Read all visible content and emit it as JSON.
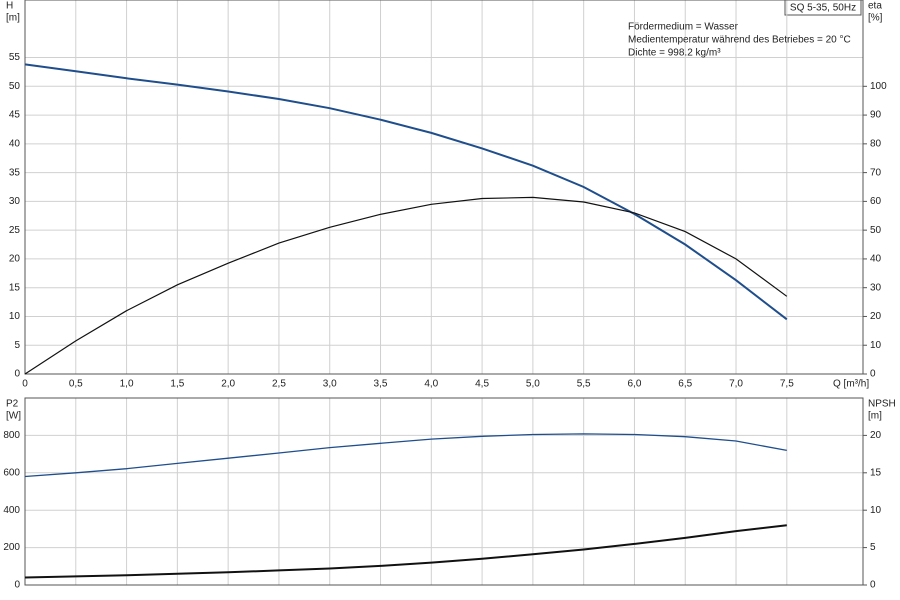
{
  "chart_data": [
    {
      "type": "line",
      "title": "SQ 5-35, 50Hz",
      "notes": [
        "Fördermedium = Wasser",
        "Medientemperatur während des Betriebes = 20 °C",
        "Dichte = 998.2 kg/m³"
      ],
      "ylabel": "H",
      "yunit": "[m]",
      "y2label": "eta",
      "y2unit": "[%]",
      "xlabel": "Q [m³/h]",
      "x": [
        0,
        0.5,
        1,
        1.5,
        2,
        2.5,
        3,
        3.5,
        4,
        4.5,
        5,
        5.5,
        6,
        6.5,
        7,
        7.5
      ],
      "xlim": [
        0,
        8.25
      ],
      "xticks": [
        0,
        {
          "value": 0.5,
          "label": "0,5"
        },
        {
          "value": 1,
          "label": "1,0"
        },
        {
          "value": 1.5,
          "label": "1,5"
        },
        {
          "value": 2,
          "label": "2,0"
        },
        {
          "value": 2.5,
          "label": "2,5"
        },
        {
          "value": 3,
          "label": "3,0"
        },
        {
          "value": 3.5,
          "label": "3,5"
        },
        {
          "value": 4,
          "label": "4,0"
        },
        {
          "value": 4.5,
          "label": "4,5"
        },
        {
          "value": 5,
          "label": "5,0"
        },
        {
          "value": 5.5,
          "label": "5,5"
        },
        {
          "value": 6,
          "label": "6,0"
        },
        {
          "value": 6.5,
          "label": "6,5"
        },
        {
          "value": 7,
          "label": "7,0"
        },
        {
          "value": 7.5,
          "label": "7,5"
        }
      ],
      "ylim": [
        0,
        65
      ],
      "yticks": [
        0,
        5,
        10,
        15,
        20,
        25,
        30,
        35,
        40,
        45,
        50,
        55
      ],
      "y2lim": [
        0,
        130
      ],
      "y2ticks": [
        0,
        10,
        20,
        30,
        40,
        50,
        60,
        70,
        80,
        90,
        100
      ],
      "grid": true,
      "series": [
        {
          "color": "#1f4e8c",
          "line_width": 2,
          "values": [
            53.8,
            52.6,
            51.4,
            50.3,
            49.1,
            47.8,
            46.2,
            44.2,
            41.9,
            39.2,
            36.2,
            32.5,
            27.8,
            22.5,
            16.3,
            9.5
          ]
        },
        {
          "color": "#111111",
          "line_width": 1.2,
          "axis": "y2",
          "values": [
            0,
            11.5,
            22,
            31,
            38.5,
            45.5,
            51,
            55.5,
            59,
            61,
            61.4,
            59.8,
            56,
            49.5,
            40,
            27
          ]
        }
      ]
    },
    {
      "type": "line",
      "ylabel": "P2",
      "yunit": "[W]",
      "y2label": "NPSH",
      "y2unit": "[m]",
      "x": [
        0,
        0.5,
        1,
        1.5,
        2,
        2.5,
        3,
        3.5,
        4,
        4.5,
        5,
        5.5,
        6,
        6.5,
        7,
        7.5
      ],
      "xlim": [
        0,
        8.25
      ],
      "ylim": [
        0,
        1000
      ],
      "yticks": [
        0,
        200,
        400,
        600,
        800
      ],
      "y2lim": [
        0,
        25
      ],
      "y2ticks": [
        0,
        5,
        10,
        15,
        20
      ],
      "grid": true,
      "series": [
        {
          "color": "#1f4e8c",
          "line_width": 1.3,
          "values": [
            580,
            600,
            622,
            650,
            678,
            706,
            735,
            758,
            780,
            795,
            805,
            808,
            805,
            793,
            770,
            720
          ]
        },
        {
          "color": "#111111",
          "line_width": 2,
          "axis": "y2",
          "values": [
            1.0,
            1.15,
            1.3,
            1.5,
            1.7,
            1.95,
            2.2,
            2.55,
            3.0,
            3.5,
            4.1,
            4.75,
            5.5,
            6.3,
            7.2,
            8.0
          ]
        }
      ]
    }
  ]
}
